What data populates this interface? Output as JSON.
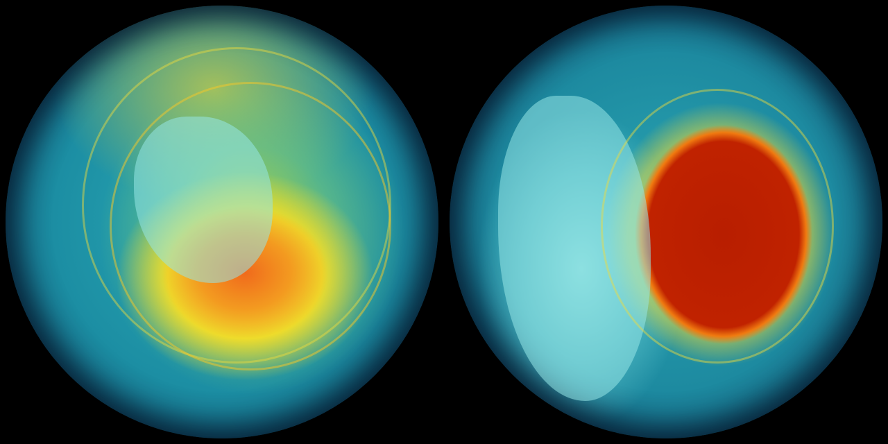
{
  "images": [
    {
      "name": "left-globe",
      "colors": {
        "core": "#f06a1c",
        "ring": "#eedc2b",
        "ocean": "#1c8ea3"
      }
    },
    {
      "name": "right-globe",
      "colors": {
        "core": "#b81e00",
        "ring": "#f0c020",
        "ocean": "#1d8aa0",
        "land": "#96e6e6"
      }
    }
  ]
}
